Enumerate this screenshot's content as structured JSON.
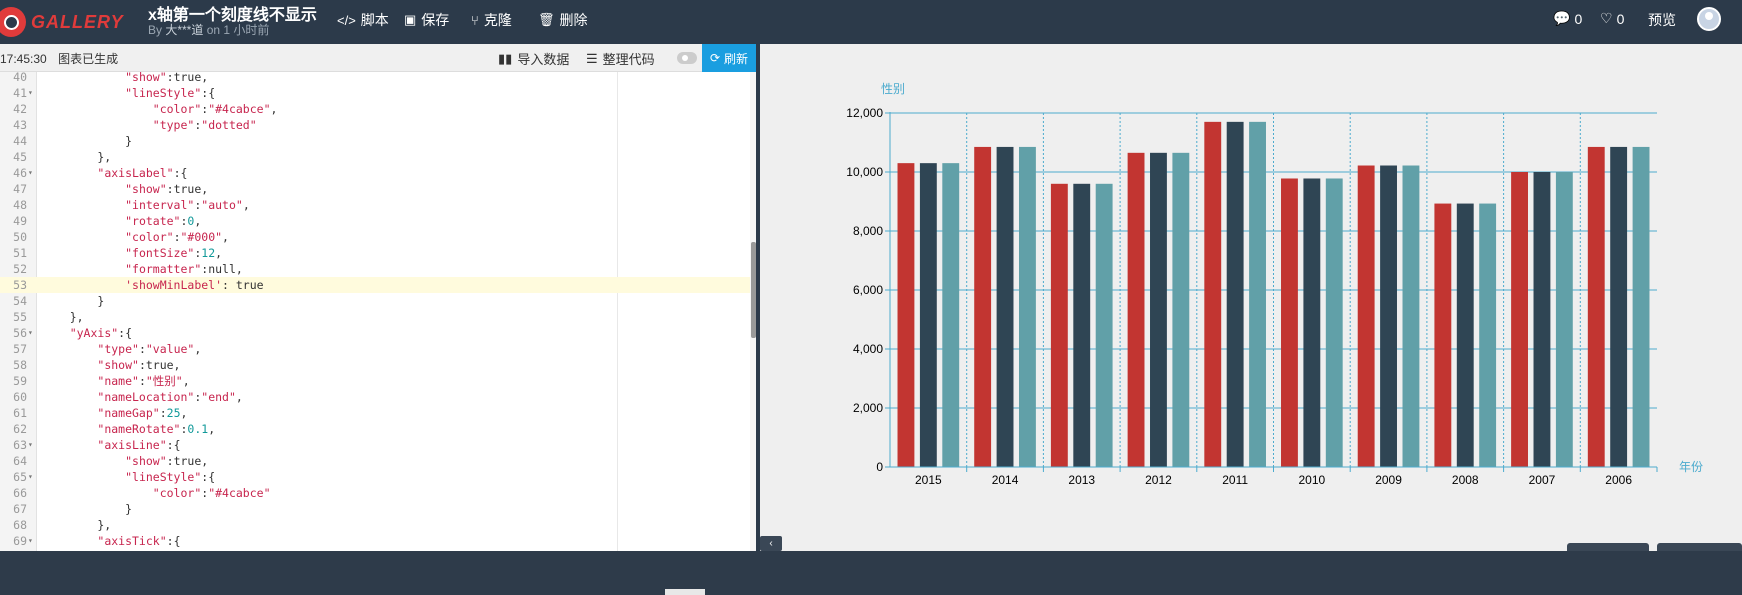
{
  "header": {
    "logo_text": "GALLERY",
    "title": "x轴第一个刻度线不显示",
    "author_prefix": "By ",
    "author": "大***道",
    "time": " on 1 小时前",
    "buttons": [
      {
        "label": "脚本",
        "icon": "code-icon"
      },
      {
        "label": "保存",
        "icon": "save-icon"
      },
      {
        "label": "克隆",
        "icon": "fork-icon"
      },
      {
        "label": "删除",
        "icon": "trash-icon"
      }
    ],
    "comments_count": "0",
    "likes_count": "0",
    "preview_label": "预览"
  },
  "editor": {
    "status_time": "17:45:30",
    "status_text": "图表已生成",
    "import_label": "导入数据",
    "format_label": "整理代码",
    "refresh_label": "刷新",
    "lines": [
      {
        "n": "40",
        "fold": false,
        "html": "            <span class='s'>\"show\"</span>:true,"
      },
      {
        "n": "41",
        "fold": true,
        "html": "            <span class='s'>\"lineStyle\"</span>:{"
      },
      {
        "n": "42",
        "fold": false,
        "html": "                <span class='s'>\"color\"</span>:<span class='s'>\"#4cabce\"</span>,"
      },
      {
        "n": "43",
        "fold": false,
        "html": "                <span class='s'>\"type\"</span>:<span class='s'>\"dotted\"</span>"
      },
      {
        "n": "44",
        "fold": false,
        "html": "            }"
      },
      {
        "n": "45",
        "fold": false,
        "html": "        },"
      },
      {
        "n": "46",
        "fold": true,
        "html": "        <span class='s'>\"axisLabel\"</span>:{"
      },
      {
        "n": "47",
        "fold": false,
        "html": "            <span class='s'>\"show\"</span>:true,"
      },
      {
        "n": "48",
        "fold": false,
        "html": "            <span class='s'>\"interval\"</span>:<span class='s'>\"auto\"</span>,"
      },
      {
        "n": "49",
        "fold": false,
        "html": "            <span class='s'>\"rotate\"</span>:<span class='n'>0</span>,"
      },
      {
        "n": "50",
        "fold": false,
        "html": "            <span class='s'>\"color\"</span>:<span class='s'>\"#000\"</span>,"
      },
      {
        "n": "51",
        "fold": false,
        "html": "            <span class='s'>\"fontSize\"</span>:<span class='n'>12</span>,"
      },
      {
        "n": "52",
        "fold": false,
        "html": "            <span class='s'>\"formatter\"</span>:null,"
      },
      {
        "n": "53",
        "fold": false,
        "active": true,
        "html": "            <span class='s'>'showMinLabel'</span>: true"
      },
      {
        "n": "54",
        "fold": false,
        "html": "        }"
      },
      {
        "n": "55",
        "fold": false,
        "html": "    },"
      },
      {
        "n": "56",
        "fold": true,
        "html": "    <span class='s'>\"yAxis\"</span>:{"
      },
      {
        "n": "57",
        "fold": false,
        "html": "        <span class='s'>\"type\"</span>:<span class='s'>\"value\"</span>,"
      },
      {
        "n": "58",
        "fold": false,
        "html": "        <span class='s'>\"show\"</span>:true,"
      },
      {
        "n": "59",
        "fold": false,
        "html": "        <span class='s'>\"name\"</span>:<span class='s'>\"性别\"</span>,"
      },
      {
        "n": "60",
        "fold": false,
        "html": "        <span class='s'>\"nameLocation\"</span>:<span class='s'>\"end\"</span>,"
      },
      {
        "n": "61",
        "fold": false,
        "html": "        <span class='s'>\"nameGap\"</span>:<span class='n'>25</span>,"
      },
      {
        "n": "62",
        "fold": false,
        "html": "        <span class='s'>\"nameRotate\"</span>:<span class='n'>0.1</span>,"
      },
      {
        "n": "63",
        "fold": true,
        "html": "        <span class='s'>\"axisLine\"</span>:{"
      },
      {
        "n": "64",
        "fold": false,
        "html": "            <span class='s'>\"show\"</span>:true,"
      },
      {
        "n": "65",
        "fold": true,
        "html": "            <span class='s'>\"lineStyle\"</span>:{"
      },
      {
        "n": "66",
        "fold": false,
        "html": "                <span class='s'>\"color\"</span>:<span class='s'>\"#4cabce\"</span>"
      },
      {
        "n": "67",
        "fold": false,
        "html": "            }"
      },
      {
        "n": "68",
        "fold": false,
        "html": "        },"
      },
      {
        "n": "69",
        "fold": true,
        "html": "        <span class='s'>\"axisTick\"</span>:{"
      }
    ]
  },
  "chart_data": {
    "type": "bar",
    "ylabel": "性别",
    "xlabel": "年份",
    "ylim": [
      0,
      12000
    ],
    "yticks": [
      "0",
      "2,000",
      "4,000",
      "6,000",
      "8,000",
      "10,000",
      "12,000"
    ],
    "categories": [
      "2015",
      "2014",
      "2013",
      "2012",
      "2011",
      "2010",
      "2009",
      "2008",
      "2007",
      "2006"
    ],
    "colors": [
      "#c23531",
      "#2f4554",
      "#61a0a8"
    ],
    "axis_color": "#4cabce",
    "series": [
      {
        "values": [
          10300,
          10850,
          9600,
          10650,
          11700,
          9780,
          10220,
          8930,
          10000,
          10850
        ]
      },
      {
        "values": [
          10300,
          10850,
          9600,
          10650,
          11700,
          9780,
          10220,
          8930,
          10000,
          10850
        ]
      },
      {
        "values": [
          10300,
          10850,
          9600,
          10650,
          11700,
          9780,
          10220,
          8930,
          10000,
          10850
        ]
      }
    ]
  }
}
